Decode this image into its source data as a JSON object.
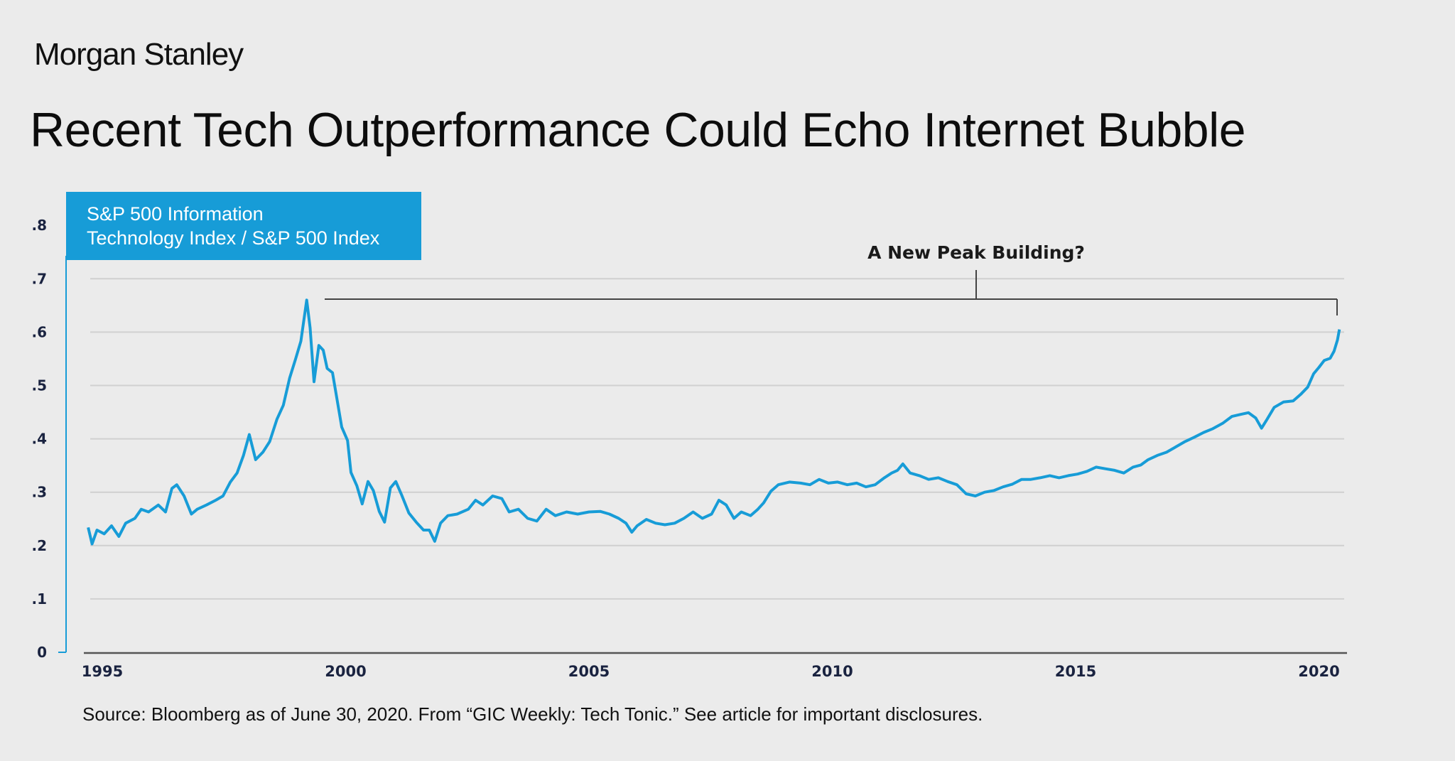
{
  "brand": "Morgan Stanley",
  "title": "Recent Tech Outperformance Could Echo Internet Bubble",
  "source": "Source: Bloomberg as of June 30, 2020. From “GIC Weekly: Tech Tonic.” See article for important disclosures.",
  "colors": {
    "series": "#179cd7",
    "legend_bg": "#179cd7",
    "background": "#ebebeb",
    "grid": "#d0d0d0",
    "axis_text": "#1a2340"
  },
  "chart_data": {
    "type": "line",
    "title": "Recent Tech Outperformance Could Echo Internet Bubble",
    "legend": [
      "S&P 500 Information",
      "Technology Index / S&P 500 Index"
    ],
    "legend_position": "top-left",
    "xlabel": "",
    "ylabel": "",
    "xlim": [
      1994.7,
      2020.45
    ],
    "ylim": [
      0,
      0.8
    ],
    "grid": true,
    "yticks": [
      0,
      0.1,
      0.2,
      0.3,
      0.4,
      0.5,
      0.6,
      0.7,
      0.8
    ],
    "ytick_labels": [
      "0",
      ".1",
      ".2",
      ".3",
      ".4",
      ".5",
      ".6",
      ".7",
      ".8"
    ],
    "xticks": [
      1995,
      2000,
      2005,
      2010,
      2015,
      2020
    ],
    "xtick_labels": [
      "1995",
      "2000",
      "2005",
      "2010",
      "2015",
      "2020"
    ],
    "annotation": {
      "text": "A New Peak Building?",
      "from_year": 1999.45,
      "to_year": 2020.38,
      "value": 0.68
    },
    "series": [
      {
        "name": "S&P 500 Information Technology Index / S&P 500 Index",
        "x": [
          1994.71,
          1994.79,
          1994.89,
          1995.04,
          1995.19,
          1995.34,
          1995.48,
          1995.67,
          1995.8,
          1995.95,
          1996.15,
          1996.3,
          1996.43,
          1996.53,
          1996.68,
          1996.83,
          1996.95,
          1997.14,
          1997.33,
          1997.48,
          1997.63,
          1997.77,
          1997.9,
          1998.02,
          1998.15,
          1998.3,
          1998.44,
          1998.59,
          1998.72,
          1998.85,
          1998.97,
          1999.08,
          1999.2,
          1999.27,
          1999.35,
          1999.45,
          1999.54,
          1999.62,
          1999.73,
          1999.81,
          1999.92,
          2000.04,
          2000.11,
          2000.23,
          2000.34,
          2000.46,
          2000.57,
          2000.69,
          2000.8,
          2000.92,
          2001.03,
          2001.15,
          2001.3,
          2001.45,
          2001.6,
          2001.72,
          2001.83,
          2001.95,
          2002.1,
          2002.29,
          2002.52,
          2002.67,
          2002.82,
          2003.02,
          2003.21,
          2003.36,
          2003.55,
          2003.74,
          2003.93,
          2004.12,
          2004.31,
          2004.54,
          2004.77,
          2005.0,
          2005.23,
          2005.42,
          2005.61,
          2005.76,
          2005.88,
          2005.99,
          2006.18,
          2006.37,
          2006.56,
          2006.76,
          2006.95,
          2007.14,
          2007.33,
          2007.52,
          2007.67,
          2007.82,
          2007.98,
          2008.13,
          2008.32,
          2008.47,
          2008.59,
          2008.74,
          2008.89,
          2009.12,
          2009.35,
          2009.54,
          2009.73,
          2009.92,
          2010.11,
          2010.31,
          2010.5,
          2010.69,
          2010.88,
          2011.07,
          2011.22,
          2011.34,
          2011.45,
          2011.6,
          2011.79,
          2011.98,
          2012.18,
          2012.37,
          2012.56,
          2012.75,
          2012.94,
          2013.13,
          2013.32,
          2013.51,
          2013.7,
          2013.89,
          2014.08,
          2014.27,
          2014.47,
          2014.66,
          2014.85,
          2015.04,
          2015.23,
          2015.42,
          2015.61,
          2015.8,
          2015.99,
          2016.18,
          2016.34,
          2016.49,
          2016.68,
          2016.87,
          2017.06,
          2017.25,
          2017.44,
          2017.63,
          2017.82,
          2018.02,
          2018.21,
          2018.4,
          2018.55,
          2018.7,
          2018.82,
          2018.93,
          2019.08,
          2019.27,
          2019.47,
          2019.62,
          2019.77,
          2019.89,
          2020.0,
          2020.11,
          2020.23,
          2020.31,
          2020.38,
          2020.42
        ],
        "y": [
          0.234,
          0.203,
          0.229,
          0.222,
          0.237,
          0.217,
          0.242,
          0.251,
          0.268,
          0.263,
          0.276,
          0.263,
          0.307,
          0.314,
          0.293,
          0.259,
          0.268,
          0.276,
          0.285,
          0.293,
          0.319,
          0.336,
          0.369,
          0.408,
          0.361,
          0.375,
          0.395,
          0.437,
          0.463,
          0.514,
          0.549,
          0.583,
          0.66,
          0.608,
          0.507,
          0.575,
          0.566,
          0.532,
          0.524,
          0.481,
          0.422,
          0.397,
          0.337,
          0.312,
          0.278,
          0.32,
          0.303,
          0.264,
          0.244,
          0.308,
          0.32,
          0.295,
          0.261,
          0.244,
          0.229,
          0.229,
          0.208,
          0.242,
          0.256,
          0.259,
          0.268,
          0.285,
          0.276,
          0.293,
          0.288,
          0.263,
          0.268,
          0.251,
          0.246,
          0.268,
          0.256,
          0.263,
          0.259,
          0.263,
          0.264,
          0.259,
          0.251,
          0.242,
          0.225,
          0.237,
          0.249,
          0.242,
          0.239,
          0.242,
          0.251,
          0.263,
          0.251,
          0.259,
          0.285,
          0.276,
          0.251,
          0.263,
          0.256,
          0.268,
          0.28,
          0.302,
          0.314,
          0.319,
          0.317,
          0.314,
          0.324,
          0.317,
          0.319,
          0.314,
          0.317,
          0.31,
          0.314,
          0.327,
          0.336,
          0.341,
          0.353,
          0.336,
          0.331,
          0.324,
          0.327,
          0.32,
          0.314,
          0.297,
          0.293,
          0.3,
          0.303,
          0.31,
          0.315,
          0.324,
          0.324,
          0.327,
          0.331,
          0.327,
          0.331,
          0.334,
          0.339,
          0.347,
          0.344,
          0.341,
          0.336,
          0.347,
          0.351,
          0.361,
          0.369,
          0.375,
          0.385,
          0.395,
          0.403,
          0.412,
          0.419,
          0.429,
          0.442,
          0.446,
          0.449,
          0.439,
          0.42,
          0.436,
          0.459,
          0.469,
          0.471,
          0.483,
          0.497,
          0.522,
          0.534,
          0.547,
          0.551,
          0.564,
          0.585,
          0.605
        ]
      }
    ]
  }
}
